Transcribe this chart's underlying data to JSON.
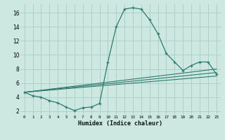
{
  "xlabel": "Humidex (Indice chaleur)",
  "xlim": [
    -0.5,
    23.5
  ],
  "ylim": [
    1.5,
    17.2
  ],
  "yticks": [
    2,
    4,
    6,
    8,
    10,
    12,
    14,
    16
  ],
  "xticks": [
    0,
    1,
    2,
    3,
    4,
    5,
    6,
    7,
    8,
    9,
    10,
    11,
    12,
    13,
    14,
    15,
    16,
    17,
    18,
    19,
    20,
    21,
    22,
    23
  ],
  "xtick_labels": [
    "0",
    "1",
    "2",
    "3",
    "4",
    "5",
    "6",
    "7",
    "8",
    "9",
    "10",
    "11",
    "12",
    "13",
    "14",
    "15",
    "16",
    "17",
    "18",
    "19",
    "20",
    "21",
    "22",
    "23"
  ],
  "background_color": "#cce8e0",
  "grid_color": "#aaccc4",
  "line_color": "#2d7a6e",
  "line1_x": [
    0,
    1,
    2,
    3,
    4,
    5,
    6,
    7,
    8,
    9,
    10,
    11,
    12,
    13,
    14,
    15,
    16,
    17,
    18,
    19,
    20,
    21,
    22,
    23
  ],
  "line1_y": [
    4.7,
    4.2,
    4.0,
    3.5,
    3.2,
    2.6,
    2.1,
    2.5,
    2.6,
    3.1,
    9.0,
    14.0,
    16.5,
    16.7,
    16.5,
    15.0,
    13.0,
    10.2,
    9.0,
    7.8,
    8.5,
    9.0,
    9.0,
    7.3
  ],
  "line2_x": [
    0,
    23
  ],
  "line2_y": [
    4.7,
    7.0
  ],
  "line3_x": [
    0,
    23
  ],
  "line3_y": [
    4.7,
    7.5
  ],
  "line4_x": [
    0,
    23
  ],
  "line4_y": [
    4.7,
    8.0
  ]
}
